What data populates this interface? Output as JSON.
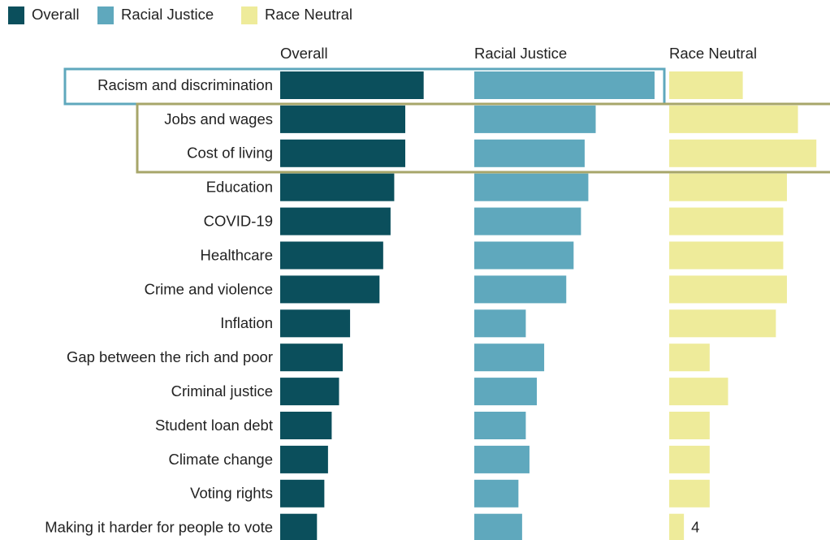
{
  "chart_data": {
    "type": "bar",
    "categories": [
      "Racism and discrimination",
      "Jobs and wages",
      "Cost of living",
      "Education",
      "COVID-19",
      "Healthcare",
      "Crime and violence",
      "Inflation",
      "Gap between the rich and poor",
      "Criminal justice",
      "Student loan debt",
      "Climate change",
      "Voting rights",
      "Making it harder for people to vote"
    ],
    "series": [
      {
        "name": "Overall",
        "color": "#0b4f5c",
        "values": [
          39,
          34,
          34,
          31,
          30,
          28,
          27,
          19,
          17,
          16,
          14,
          13,
          12,
          10
        ]
      },
      {
        "name": "Racial Justice",
        "color": "#5fa8bd",
        "values": [
          49,
          33,
          30,
          31,
          29,
          27,
          25,
          14,
          19,
          17,
          14,
          15,
          12,
          13
        ]
      },
      {
        "name": "Race Neutral",
        "color": "#eeeb9a",
        "values": [
          20,
          35,
          40,
          32,
          31,
          31,
          32,
          29,
          11,
          16,
          11,
          11,
          11,
          4
        ]
      }
    ]
  }
}
